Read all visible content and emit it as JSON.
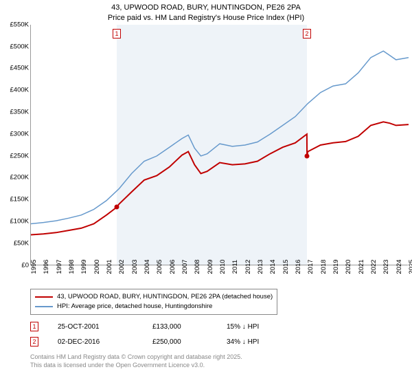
{
  "title": "43, UPWOOD ROAD, BURY, HUNTINGDON, PE26 2PA",
  "subtitle": "Price paid vs. HM Land Registry's House Price Index (HPI)",
  "chart": {
    "type": "line",
    "ylim": [
      0,
      550
    ],
    "ytick_step": 50,
    "y_prefix": "£",
    "y_suffix": "K",
    "xlim": [
      1995,
      2025
    ],
    "x_ticks": [
      1995,
      1996,
      1997,
      1998,
      1999,
      2000,
      2001,
      2002,
      2003,
      2004,
      2005,
      2006,
      2007,
      2008,
      2009,
      2010,
      2011,
      2012,
      2013,
      2014,
      2015,
      2016,
      2017,
      2018,
      2019,
      2020,
      2021,
      2022,
      2023,
      2024,
      2025
    ],
    "background_color": "#ffffff",
    "shaded_band_color": "#eef3f8",
    "shaded_band": [
      2001.82,
      2016.92
    ],
    "grid_color": "#d0d0d0",
    "series": [
      {
        "name": "price_paid",
        "label": "43, UPWOOD ROAD, BURY, HUNTINGDON, PE26 2PA (detached house)",
        "color": "#c00000",
        "line_width": 2,
        "data_x": [
          1995,
          1996,
          1997,
          1998,
          1999,
          2000,
          2001,
          2001.82,
          2002,
          2003,
          2004,
          2005,
          2006,
          2007,
          2007.5,
          2008,
          2008.5,
          2009,
          2010,
          2011,
          2012,
          2013,
          2014,
          2015,
          2016,
          2016.92,
          2016.93,
          2017,
          2018,
          2019,
          2020,
          2021,
          2022,
          2023,
          2023.5,
          2024,
          2025
        ],
        "data_y": [
          70,
          72,
          75,
          80,
          85,
          95,
          115,
          133,
          140,
          168,
          195,
          205,
          225,
          252,
          260,
          230,
          210,
          215,
          235,
          230,
          232,
          238,
          255,
          270,
          280,
          300,
          250,
          260,
          275,
          280,
          283,
          295,
          320,
          328,
          325,
          320,
          322
        ]
      },
      {
        "name": "hpi",
        "label": "HPI: Average price, detached house, Huntingdonshire",
        "color": "#6699cc",
        "line_width": 1.5,
        "data_x": [
          1995,
          1996,
          1997,
          1998,
          1999,
          2000,
          2001,
          2002,
          2003,
          2004,
          2005,
          2006,
          2007,
          2007.5,
          2008,
          2008.5,
          2009,
          2010,
          2011,
          2012,
          2013,
          2014,
          2015,
          2016,
          2017,
          2018,
          2019,
          2020,
          2021,
          2022,
          2023,
          2023.5,
          2024,
          2025
        ],
        "data_y": [
          95,
          98,
          102,
          108,
          115,
          128,
          148,
          175,
          210,
          238,
          250,
          270,
          290,
          298,
          268,
          250,
          255,
          278,
          272,
          275,
          282,
          300,
          320,
          340,
          370,
          395,
          410,
          415,
          440,
          475,
          490,
          480,
          470,
          475
        ]
      }
    ],
    "markers": [
      {
        "id": "1",
        "x": 2001.82,
        "y": 133,
        "color": "#c00000"
      },
      {
        "id": "2",
        "x": 2016.92,
        "y": 250,
        "color": "#c00000"
      }
    ],
    "title_fontsize": 11,
    "tick_fontsize": 9.5
  },
  "legend": {
    "border_color": "#888888"
  },
  "sales": [
    {
      "id": "1",
      "date": "25-OCT-2001",
      "price": "£133,000",
      "delta": "15% ↓ HPI"
    },
    {
      "id": "2",
      "date": "02-DEC-2016",
      "price": "£250,000",
      "delta": "34% ↓ HPI"
    }
  ],
  "attribution": {
    "line1": "Contains HM Land Registry data © Crown copyright and database right 2025.",
    "line2": "This data is licensed under the Open Government Licence v3.0."
  }
}
